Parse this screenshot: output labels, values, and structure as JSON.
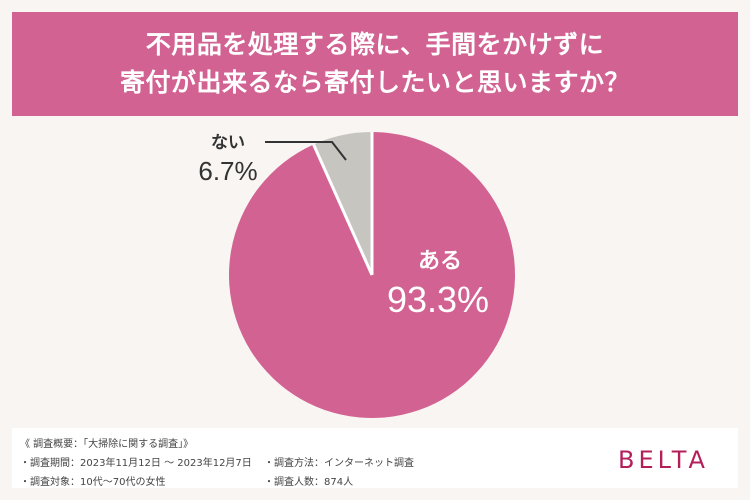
{
  "header": {
    "title_line1": "不用品を処理する際に、手間をかけずに",
    "title_line2": "寄付が出来るなら寄付したいと思いますか？"
  },
  "chart_data": {
    "type": "pie",
    "title": "不用品を処理する際に、手間をかけずに寄付が出来るなら寄付したいと思いますか？",
    "slices": [
      {
        "label": "ある",
        "value": 93.3,
        "display": "93.3%",
        "color": "#d26292"
      },
      {
        "label": "ない",
        "value": 6.7,
        "display": "6.7%",
        "color": "#c7c5c0"
      }
    ],
    "legend": "none"
  },
  "footer": {
    "overview": "《 調査概要：「大掃除に関する調査」》",
    "period": "・調査期間：2023年11月12日 ～ 2023年12月7日",
    "method": "・調査方法：インターネット調査",
    "target": "・調査対象：10代～70代の女性",
    "count": "・調査人数：874人",
    "logo": "BELTA"
  },
  "colors": {
    "accent": "#d26292",
    "secondary": "#c7c5c0",
    "brand": "#b41f5a",
    "background": "#f8f5f2"
  }
}
